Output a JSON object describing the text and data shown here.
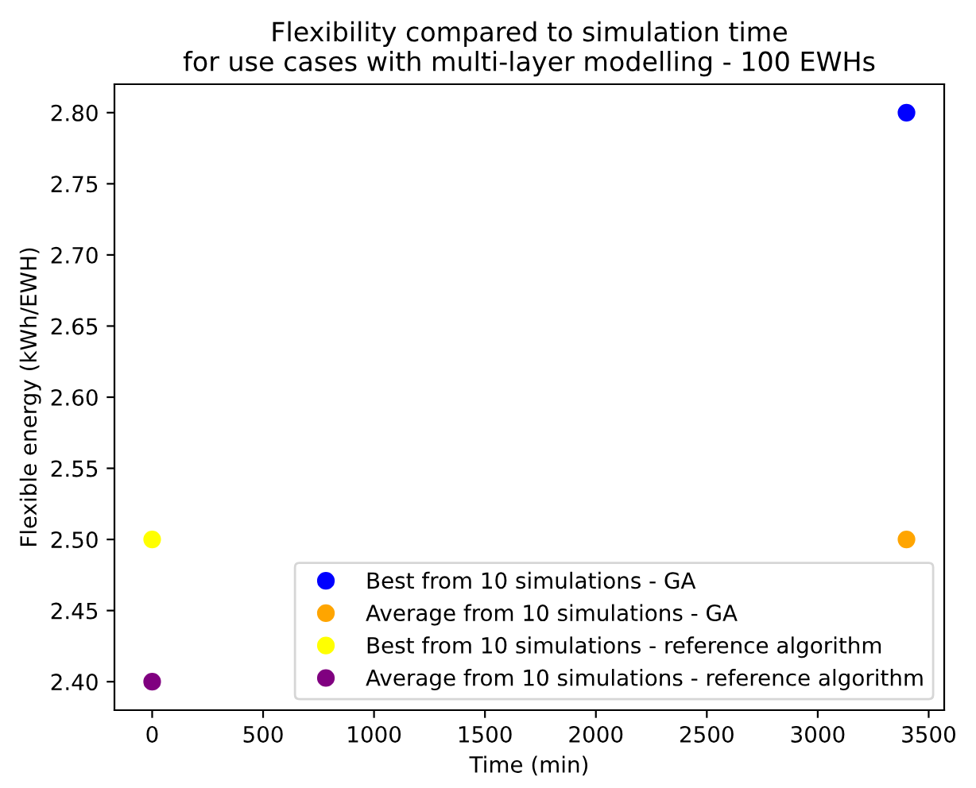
{
  "chart_data": {
    "type": "scatter",
    "title": "Flexibility compared to simulation time\nfor use cases with multi-layer modelling - 100 EWHs",
    "xlabel": "Time (min)",
    "ylabel": "Flexible energy (kWh/EWH)",
    "x": [
      0,
      3400
    ],
    "series": [
      {
        "name": "Best from 10 simulations - GA",
        "color": "#0000ff",
        "values": [
          null,
          2.8
        ]
      },
      {
        "name": "Average from 10 simulations - GA",
        "color": "#ffa500",
        "values": [
          null,
          2.5
        ]
      },
      {
        "name": "Best from 10 simulations - reference algorithm",
        "color": "#ffff00",
        "values": [
          2.5,
          null
        ]
      },
      {
        "name": "Average from 10 simulations - reference algorithm",
        "color": "#800080",
        "values": [
          2.4,
          null
        ]
      }
    ],
    "xlim": [
      -170,
      3570
    ],
    "xticks": [
      0,
      500,
      1000,
      1500,
      2000,
      2500,
      3000,
      3500
    ],
    "ylim": [
      2.38,
      2.82
    ],
    "yticks": [
      {
        "value": 2.4,
        "label": "2.40"
      },
      {
        "value": 2.45,
        "label": "2.45"
      },
      {
        "value": 2.5,
        "label": "2.50"
      },
      {
        "value": 2.55,
        "label": "2.55"
      },
      {
        "value": 2.6,
        "label": "2.60"
      },
      {
        "value": 2.65,
        "label": "2.65"
      },
      {
        "value": 2.7,
        "label": "2.70"
      },
      {
        "value": 2.75,
        "label": "2.75"
      },
      {
        "value": 2.8,
        "label": "2.80"
      }
    ],
    "legend": "lower right",
    "marker": "circle"
  }
}
